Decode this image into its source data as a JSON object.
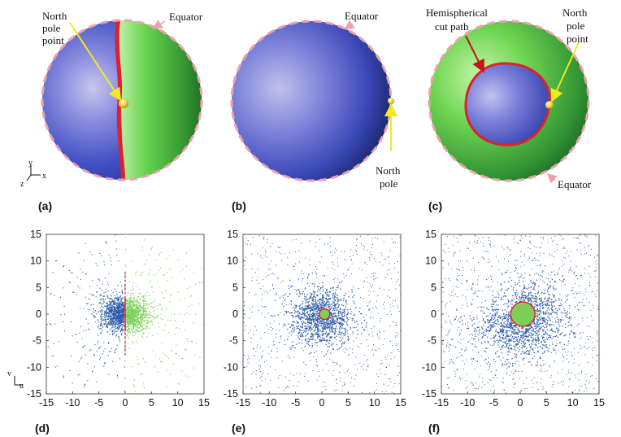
{
  "spheres": {
    "a": {
      "annotations": {
        "north_pole_point": [
          "North",
          "pole",
          "point"
        ],
        "equator": "Equator"
      },
      "axes_glyph": {
        "y": "y",
        "x": "x",
        "z": "z"
      }
    },
    "b": {
      "annotations": {
        "equator": "Equator",
        "north_pole": [
          "North",
          "pole"
        ]
      }
    },
    "c": {
      "annotations": {
        "hemispherical_cut_path": [
          "Hemispherical",
          "cut path"
        ],
        "north_pole_point": [
          "North",
          "pole",
          "point"
        ],
        "equator": "Equator"
      }
    }
  },
  "panel_labels": [
    "(a)",
    "(b)",
    "(c)",
    "(d)",
    "(e)",
    "(f)"
  ],
  "colors": {
    "blue_hemisphere": "#3b4fb8",
    "green_hemisphere": "#5fd04a",
    "cut_path": "#e0202a",
    "equator_dash": "#f0a0a8",
    "pole_marker": "#e8d23a",
    "arrow_yellow": "#f2ea1a",
    "scatter_blue": "#2c5aa8",
    "scatter_green": "#7ecf5a"
  },
  "chart_data": [
    {
      "panel": "(d)",
      "type": "scatter",
      "xlim": [
        -15,
        15
      ],
      "ylim": [
        -15,
        15
      ],
      "xticks": [
        -15,
        -10,
        -5,
        0,
        5,
        10,
        15
      ],
      "yticks": [
        15,
        10,
        5,
        0,
        -5,
        -10,
        -15
      ],
      "axis_glyph": {
        "v": "v",
        "u": "u"
      },
      "series": [
        {
          "color": "blue",
          "description_note": ""
        },
        {
          "color": "green"
        }
      ],
      "cut_boundary": {
        "type": "line",
        "x": 0
      }
    },
    {
      "panel": "(e)",
      "type": "scatter",
      "xlim": [
        -15,
        15
      ],
      "ylim": [
        -15,
        15
      ],
      "xticks": [
        -15,
        -10,
        -5,
        0,
        5,
        10,
        15
      ],
      "yticks": [
        15,
        10,
        5,
        0,
        -5,
        -10,
        -15
      ],
      "series": [
        {
          "color": "blue"
        },
        {
          "color": "green"
        }
      ],
      "cut_boundary": {
        "type": "circle",
        "center": [
          0.5,
          0
        ],
        "radius": 1
      }
    },
    {
      "panel": "(f)",
      "type": "scatter",
      "xlim": [
        -15,
        15
      ],
      "ylim": [
        -15,
        15
      ],
      "xticks": [
        -15,
        -10,
        -5,
        0,
        5,
        10,
        15
      ],
      "yticks": [
        15,
        10,
        5,
        0,
        -5,
        -10,
        -15
      ],
      "series": [
        {
          "color": "blue"
        },
        {
          "color": "green"
        }
      ],
      "cut_boundary": {
        "type": "circle",
        "center": [
          0.5,
          0
        ],
        "radius": 2.3
      }
    }
  ]
}
